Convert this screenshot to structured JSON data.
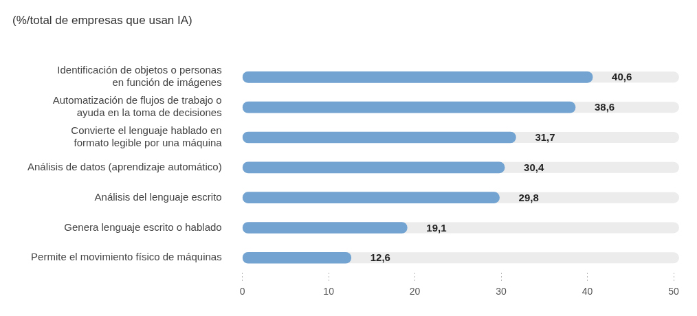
{
  "chart_data": {
    "type": "bar",
    "orientation": "horizontal",
    "title": "(%/total de empresas que usan IA)",
    "categories": [
      "Identificación de objetos o personas\nen función de imágenes",
      "Automatización de flujos de trabajo o\nayuda en la toma de decisiones",
      "Convierte el lenguaje hablado en\nformato legible por una máquina",
      "Análisis de datos (aprendizaje automático)",
      "Análisis del lenguaje escrito",
      "Genera lenguaje escrito o hablado",
      "Permite el movimiento físico de máquinas"
    ],
    "values": [
      40.6,
      38.6,
      31.7,
      30.4,
      29.8,
      19.1,
      12.6
    ],
    "value_labels": [
      "40,6",
      "38,6",
      "31,7",
      "30,4",
      "29,8",
      "19,1",
      "12,6"
    ],
    "color": "#72a3d1",
    "xlim": [
      0,
      50
    ],
    "xticks": [
      0,
      10,
      20,
      30,
      40,
      50
    ],
    "grid": false,
    "data_labels": true
  }
}
